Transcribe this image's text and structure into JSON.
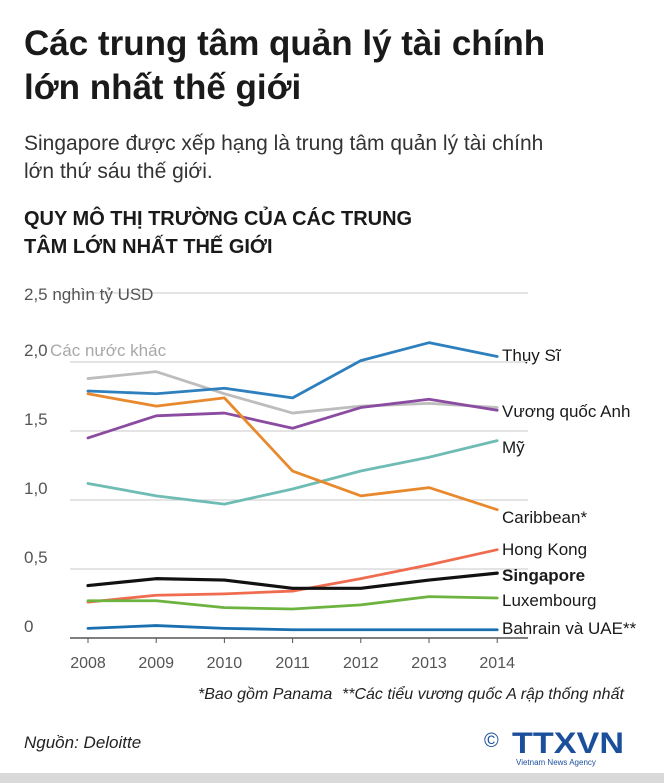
{
  "header": {
    "title_line1": "Các trung tâm quản lý tài chính",
    "title_line2": "lớn nhất thế giới",
    "subtitle_line1": "Singapore được xếp hạng là trung tâm quản lý tài chính",
    "subtitle_line2": "lớn thứ sáu thế giới.",
    "chart_heading_line1": "QUY MÔ THỊ TRƯỜNG CỦA CÁC TRUNG",
    "chart_heading_line2": "TÂM LỚN NHẤT THẾ GIỚI"
  },
  "chart_data": {
    "type": "line",
    "title": "QUY MÔ THỊ TRƯỜNG CỦA CÁC TRUNG TÂM LỚN NHẤT THẾ GIỚI",
    "ylabel": "2,5 nghìn tỷ USD",
    "x": [
      "2008",
      "2009",
      "2010",
      "2011",
      "2012",
      "2013",
      "2014"
    ],
    "ylim": [
      0,
      2.5
    ],
    "yticks": [
      "0",
      "0,5",
      "1,0",
      "1,5",
      "2,0"
    ],
    "grid": true,
    "series": [
      {
        "name": "Các nước khác",
        "color": "#bdbdbd",
        "values": [
          1.88,
          1.93,
          1.77,
          1.63,
          1.68,
          1.7,
          1.67
        ]
      },
      {
        "name": "Thụy Sĩ",
        "color": "#2d7fbd",
        "values": [
          1.79,
          1.77,
          1.81,
          1.74,
          2.01,
          2.14,
          2.04
        ]
      },
      {
        "name": "Vương quốc Anh",
        "color": "#8a4ba0",
        "values": [
          1.45,
          1.61,
          1.63,
          1.52,
          1.67,
          1.73,
          1.65
        ]
      },
      {
        "name": "Mỹ",
        "color": "#6fbcb4",
        "values": [
          1.12,
          1.03,
          0.97,
          1.08,
          1.21,
          1.31,
          1.43
        ]
      },
      {
        "name": "Caribbean*",
        "color": "#e8892e",
        "values": [
          1.77,
          1.68,
          1.74,
          1.21,
          1.03,
          1.09,
          0.93
        ]
      },
      {
        "name": "Hong Kong",
        "color": "#ef6c50",
        "values": [
          0.26,
          0.31,
          0.32,
          0.34,
          0.43,
          0.53,
          0.64
        ]
      },
      {
        "name": "Singapore",
        "color": "#111111",
        "values": [
          0.38,
          0.43,
          0.42,
          0.36,
          0.36,
          0.42,
          0.47
        ]
      },
      {
        "name": "Luxembourg",
        "color": "#6db33f",
        "values": [
          0.27,
          0.27,
          0.22,
          0.21,
          0.24,
          0.3,
          0.29
        ]
      },
      {
        "name": "Bahrain và UAE**",
        "color": "#1a6fb0",
        "values": [
          0.07,
          0.09,
          0.07,
          0.06,
          0.06,
          0.06,
          0.06
        ]
      }
    ]
  },
  "footnotes": {
    "note1": "*Bao gồm Panama",
    "note2": "**Các tiểu vương quốc A rập thống nhất",
    "source": "Nguồn: Deloitte"
  },
  "logo": {
    "copyright": "©",
    "brand": "TTXVN",
    "tagline": "Vietnam News Agency",
    "brand_color": "#1b4f9c",
    "accent_color": "#d6262b"
  }
}
